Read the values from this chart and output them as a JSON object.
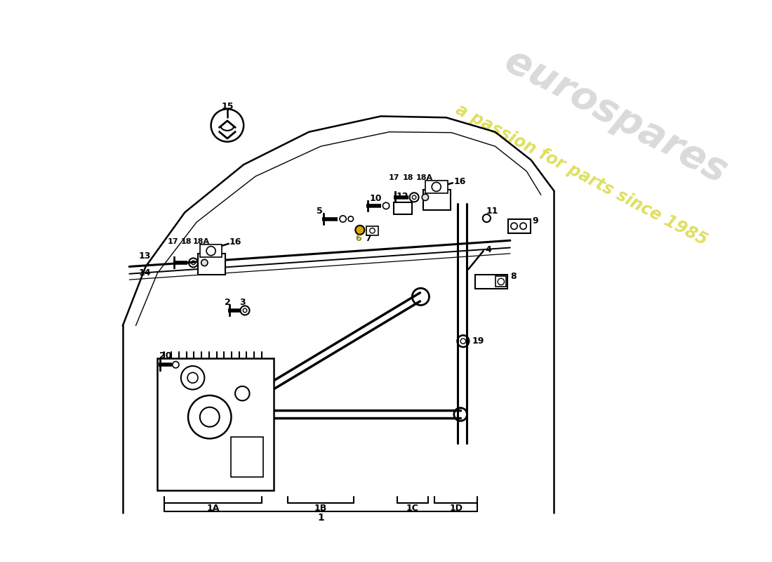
{
  "bg_color": "#ffffff",
  "line_color": "#000000",
  "watermark_text": "eurospares",
  "watermark_subtext": "a passion for parts since 1985",
  "watermark_color": "#cccccc",
  "watermark_subcolor": "#cccc00",
  "fig_width": 11.0,
  "fig_height": 8.0,
  "dpi": 100,
  "xlim": [
    0,
    1100
  ],
  "ylim": [
    0,
    800
  ]
}
